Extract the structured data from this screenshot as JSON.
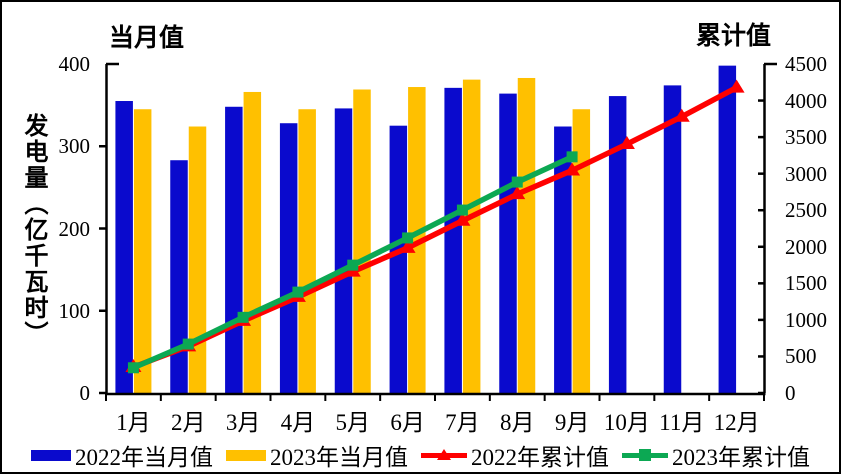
{
  "titles": {
    "left_axis_top": "当月值",
    "right_axis_top": "累计值",
    "y_axis_label": "发电量（亿千瓦时）"
  },
  "colors": {
    "axis": "#000000",
    "background": "#FFFFFF",
    "bar_2022": "#0A0ACD",
    "bar_2023": "#FFC000",
    "line_2022": "#FF0000",
    "line_2023": "#0CA853"
  },
  "chart_data": {
    "type": "bar",
    "subtype": "bar+line combo, dual axis",
    "categories": [
      "1月",
      "2月",
      "3月",
      "4月",
      "5月",
      "6月",
      "7月",
      "8月",
      "9月",
      "10月",
      "11月",
      "12月"
    ],
    "series": [
      {
        "name": "2022年当月值",
        "type": "bar",
        "axis": "left",
        "color_key": "bar_2022",
        "values": [
          355,
          283,
          348,
          328,
          346,
          325,
          371,
          364,
          324,
          361,
          374,
          398
        ]
      },
      {
        "name": "2023年当月值",
        "type": "bar",
        "axis": "left",
        "color_key": "bar_2023",
        "values": [
          345,
          324,
          366,
          345,
          369,
          372,
          381,
          383,
          345,
          null,
          null,
          null
        ]
      },
      {
        "name": "2022年累计值",
        "type": "line",
        "marker": "triangle",
        "axis": "right",
        "color_key": "line_2022",
        "values": [
          355,
          638,
          986,
          1314,
          1660,
          1985,
          2356,
          2720,
          3044,
          3405,
          3779,
          4177
        ]
      },
      {
        "name": "2023年累计值",
        "type": "line",
        "marker": "square",
        "axis": "right",
        "color_key": "line_2023",
        "values": [
          345,
          669,
          1035,
          1380,
          1749,
          2121,
          2502,
          2885,
          3230,
          null,
          null,
          null
        ]
      }
    ],
    "left_axis": {
      "title": "当月值",
      "range": [
        0,
        400
      ],
      "ticks": [
        0,
        100,
        200,
        300,
        400
      ]
    },
    "right_axis": {
      "title": "累计值",
      "range": [
        0,
        4500
      ],
      "ticks": [
        0,
        500,
        1000,
        1500,
        2000,
        2500,
        3000,
        3500,
        4000,
        4500
      ]
    },
    "xlabel": "",
    "ylabel": "发电量（亿千瓦时）",
    "grid": false,
    "legend_position": "bottom"
  },
  "legend": {
    "items": [
      {
        "label": "2022年当月值",
        "swatch": "rect",
        "color_key": "bar_2022"
      },
      {
        "label": "2023年当月值",
        "swatch": "rect",
        "color_key": "bar_2023"
      },
      {
        "label": "2022年累计值",
        "swatch": "line-triangle",
        "color_key": "line_2022"
      },
      {
        "label": "2023年累计值",
        "swatch": "line-square",
        "color_key": "line_2023"
      }
    ]
  }
}
